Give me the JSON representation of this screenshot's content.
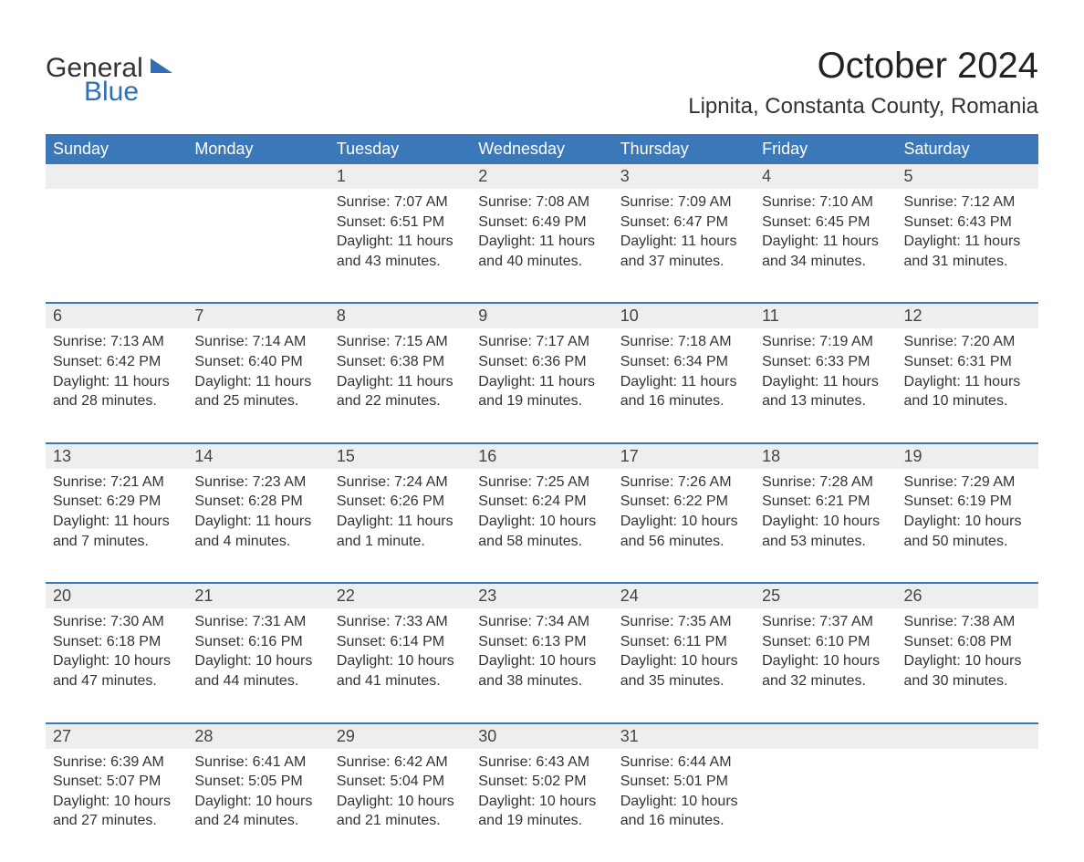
{
  "logo": {
    "word1": "General",
    "word2": "Blue"
  },
  "title": "October 2024",
  "location": "Lipnita, Constanta County, Romania",
  "theme": {
    "header_bg": "#3b78b9",
    "header_fg": "#ffffff",
    "daynum_bg": "#eeeeee",
    "row_border": "#3b78b9",
    "brand_blue": "#2f6fb5",
    "text": "#333333",
    "title_fontsize_pt": 30,
    "location_fontsize_pt": 18,
    "th_fontsize_pt": 14,
    "cell_fontsize_pt": 12
  },
  "weekdays": [
    "Sunday",
    "Monday",
    "Tuesday",
    "Wednesday",
    "Thursday",
    "Friday",
    "Saturday"
  ],
  "weeks": [
    [
      {
        "day": ""
      },
      {
        "day": ""
      },
      {
        "day": "1",
        "sunrise": "Sunrise: 7:07 AM",
        "sunset": "Sunset: 6:51 PM",
        "dl1": "Daylight: 11 hours",
        "dl2": "and 43 minutes."
      },
      {
        "day": "2",
        "sunrise": "Sunrise: 7:08 AM",
        "sunset": "Sunset: 6:49 PM",
        "dl1": "Daylight: 11 hours",
        "dl2": "and 40 minutes."
      },
      {
        "day": "3",
        "sunrise": "Sunrise: 7:09 AM",
        "sunset": "Sunset: 6:47 PM",
        "dl1": "Daylight: 11 hours",
        "dl2": "and 37 minutes."
      },
      {
        "day": "4",
        "sunrise": "Sunrise: 7:10 AM",
        "sunset": "Sunset: 6:45 PM",
        "dl1": "Daylight: 11 hours",
        "dl2": "and 34 minutes."
      },
      {
        "day": "5",
        "sunrise": "Sunrise: 7:12 AM",
        "sunset": "Sunset: 6:43 PM",
        "dl1": "Daylight: 11 hours",
        "dl2": "and 31 minutes."
      }
    ],
    [
      {
        "day": "6",
        "sunrise": "Sunrise: 7:13 AM",
        "sunset": "Sunset: 6:42 PM",
        "dl1": "Daylight: 11 hours",
        "dl2": "and 28 minutes."
      },
      {
        "day": "7",
        "sunrise": "Sunrise: 7:14 AM",
        "sunset": "Sunset: 6:40 PM",
        "dl1": "Daylight: 11 hours",
        "dl2": "and 25 minutes."
      },
      {
        "day": "8",
        "sunrise": "Sunrise: 7:15 AM",
        "sunset": "Sunset: 6:38 PM",
        "dl1": "Daylight: 11 hours",
        "dl2": "and 22 minutes."
      },
      {
        "day": "9",
        "sunrise": "Sunrise: 7:17 AM",
        "sunset": "Sunset: 6:36 PM",
        "dl1": "Daylight: 11 hours",
        "dl2": "and 19 minutes."
      },
      {
        "day": "10",
        "sunrise": "Sunrise: 7:18 AM",
        "sunset": "Sunset: 6:34 PM",
        "dl1": "Daylight: 11 hours",
        "dl2": "and 16 minutes."
      },
      {
        "day": "11",
        "sunrise": "Sunrise: 7:19 AM",
        "sunset": "Sunset: 6:33 PM",
        "dl1": "Daylight: 11 hours",
        "dl2": "and 13 minutes."
      },
      {
        "day": "12",
        "sunrise": "Sunrise: 7:20 AM",
        "sunset": "Sunset: 6:31 PM",
        "dl1": "Daylight: 11 hours",
        "dl2": "and 10 minutes."
      }
    ],
    [
      {
        "day": "13",
        "sunrise": "Sunrise: 7:21 AM",
        "sunset": "Sunset: 6:29 PM",
        "dl1": "Daylight: 11 hours",
        "dl2": "and 7 minutes."
      },
      {
        "day": "14",
        "sunrise": "Sunrise: 7:23 AM",
        "sunset": "Sunset: 6:28 PM",
        "dl1": "Daylight: 11 hours",
        "dl2": "and 4 minutes."
      },
      {
        "day": "15",
        "sunrise": "Sunrise: 7:24 AM",
        "sunset": "Sunset: 6:26 PM",
        "dl1": "Daylight: 11 hours",
        "dl2": "and 1 minute."
      },
      {
        "day": "16",
        "sunrise": "Sunrise: 7:25 AM",
        "sunset": "Sunset: 6:24 PM",
        "dl1": "Daylight: 10 hours",
        "dl2": "and 58 minutes."
      },
      {
        "day": "17",
        "sunrise": "Sunrise: 7:26 AM",
        "sunset": "Sunset: 6:22 PM",
        "dl1": "Daylight: 10 hours",
        "dl2": "and 56 minutes."
      },
      {
        "day": "18",
        "sunrise": "Sunrise: 7:28 AM",
        "sunset": "Sunset: 6:21 PM",
        "dl1": "Daylight: 10 hours",
        "dl2": "and 53 minutes."
      },
      {
        "day": "19",
        "sunrise": "Sunrise: 7:29 AM",
        "sunset": "Sunset: 6:19 PM",
        "dl1": "Daylight: 10 hours",
        "dl2": "and 50 minutes."
      }
    ],
    [
      {
        "day": "20",
        "sunrise": "Sunrise: 7:30 AM",
        "sunset": "Sunset: 6:18 PM",
        "dl1": "Daylight: 10 hours",
        "dl2": "and 47 minutes."
      },
      {
        "day": "21",
        "sunrise": "Sunrise: 7:31 AM",
        "sunset": "Sunset: 6:16 PM",
        "dl1": "Daylight: 10 hours",
        "dl2": "and 44 minutes."
      },
      {
        "day": "22",
        "sunrise": "Sunrise: 7:33 AM",
        "sunset": "Sunset: 6:14 PM",
        "dl1": "Daylight: 10 hours",
        "dl2": "and 41 minutes."
      },
      {
        "day": "23",
        "sunrise": "Sunrise: 7:34 AM",
        "sunset": "Sunset: 6:13 PM",
        "dl1": "Daylight: 10 hours",
        "dl2": "and 38 minutes."
      },
      {
        "day": "24",
        "sunrise": "Sunrise: 7:35 AM",
        "sunset": "Sunset: 6:11 PM",
        "dl1": "Daylight: 10 hours",
        "dl2": "and 35 minutes."
      },
      {
        "day": "25",
        "sunrise": "Sunrise: 7:37 AM",
        "sunset": "Sunset: 6:10 PM",
        "dl1": "Daylight: 10 hours",
        "dl2": "and 32 minutes."
      },
      {
        "day": "26",
        "sunrise": "Sunrise: 7:38 AM",
        "sunset": "Sunset: 6:08 PM",
        "dl1": "Daylight: 10 hours",
        "dl2": "and 30 minutes."
      }
    ],
    [
      {
        "day": "27",
        "sunrise": "Sunrise: 6:39 AM",
        "sunset": "Sunset: 5:07 PM",
        "dl1": "Daylight: 10 hours",
        "dl2": "and 27 minutes."
      },
      {
        "day": "28",
        "sunrise": "Sunrise: 6:41 AM",
        "sunset": "Sunset: 5:05 PM",
        "dl1": "Daylight: 10 hours",
        "dl2": "and 24 minutes."
      },
      {
        "day": "29",
        "sunrise": "Sunrise: 6:42 AM",
        "sunset": "Sunset: 5:04 PM",
        "dl1": "Daylight: 10 hours",
        "dl2": "and 21 minutes."
      },
      {
        "day": "30",
        "sunrise": "Sunrise: 6:43 AM",
        "sunset": "Sunset: 5:02 PM",
        "dl1": "Daylight: 10 hours",
        "dl2": "and 19 minutes."
      },
      {
        "day": "31",
        "sunrise": "Sunrise: 6:44 AM",
        "sunset": "Sunset: 5:01 PM",
        "dl1": "Daylight: 10 hours",
        "dl2": "and 16 minutes."
      },
      {
        "day": ""
      },
      {
        "day": ""
      }
    ]
  ]
}
